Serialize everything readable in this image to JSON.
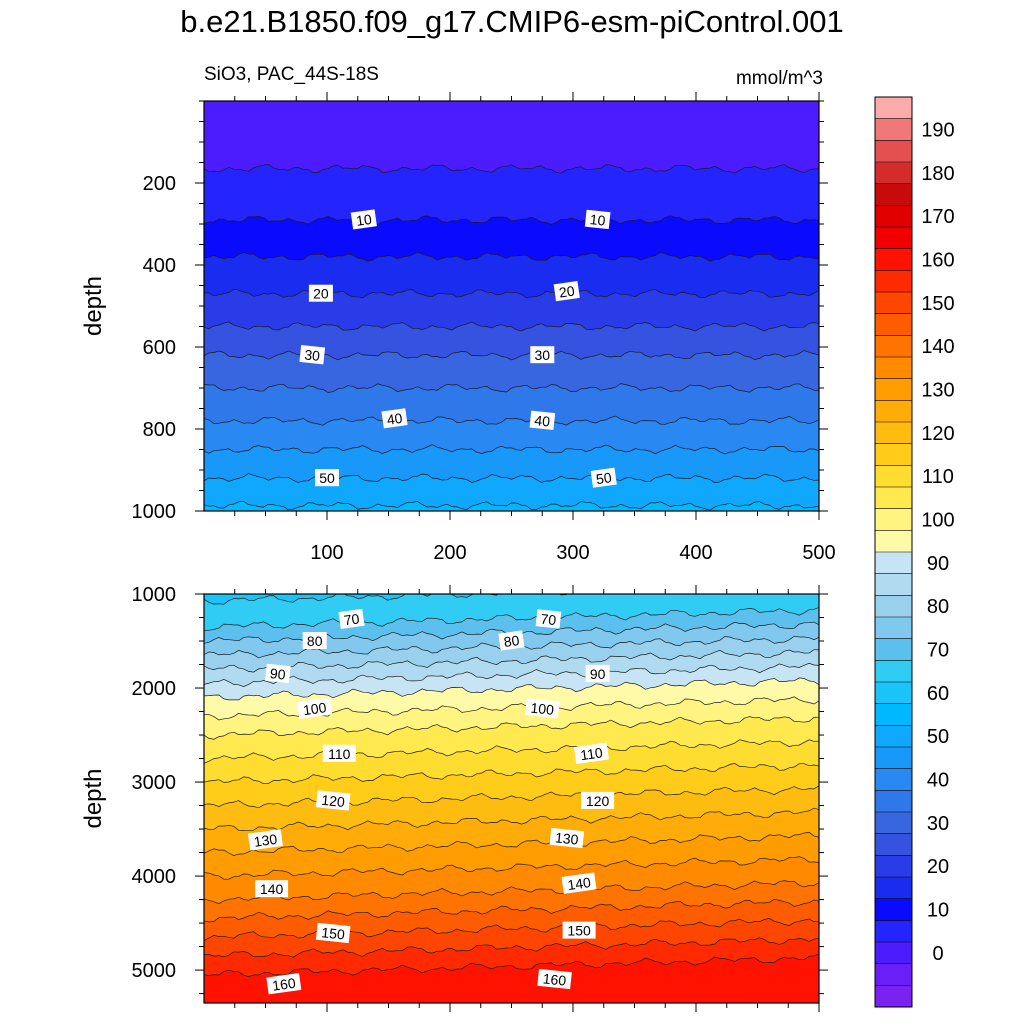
{
  "figure": {
    "title": "b.e21.B1850.f09_g17.CMIP6-esm-piControl.001",
    "left_subtitle": "SiO3, PAC_44S-18S",
    "right_subtitle": "mmol/m^3"
  },
  "colorbar": {
    "levels": [
      -10,
      -5,
      0,
      5,
      10,
      15,
      20,
      25,
      30,
      35,
      40,
      45,
      50,
      55,
      60,
      65,
      70,
      75,
      80,
      85,
      90,
      95,
      100,
      105,
      110,
      115,
      120,
      125,
      130,
      135,
      140,
      145,
      150,
      155,
      160,
      165,
      170,
      175,
      180,
      185,
      190,
      195,
      200
    ],
    "tick_labels": [
      "0",
      "10",
      "20",
      "30",
      "40",
      "50",
      "60",
      "70",
      "80",
      "90",
      "100",
      "110",
      "120",
      "130",
      "140",
      "150",
      "160",
      "170",
      "180",
      "190"
    ],
    "colors": [
      "#7a22f0",
      "#6a1ef8",
      "#4c1cff",
      "#2424ff",
      "#0a0aff",
      "#1a2cf0",
      "#2a3ce8",
      "#3552e0",
      "#3866e0",
      "#2e78ea",
      "#2a88f2",
      "#1898f8",
      "#10a8ff",
      "#00b8ff",
      "#1ac4f8",
      "#30ccf4",
      "#5cc0ee",
      "#80c8ee",
      "#98d0ee",
      "#b0daf0",
      "#c6e4f4",
      "#fffaa8",
      "#fff480",
      "#ffe94e",
      "#ffdc30",
      "#ffcc1a",
      "#ffbc10",
      "#ffab08",
      "#ff9c00",
      "#ff8a00",
      "#ff7400",
      "#ff5c00",
      "#ff4600",
      "#ff2a00",
      "#ff1200",
      "#f20000",
      "#e00000",
      "#c80a0a",
      "#d42c2c",
      "#e45050",
      "#f07878",
      "#fcaaaa"
    ]
  },
  "chart_data": [
    {
      "type": "heatmap",
      "subtitle": "SiO3, PAC_44S-18S",
      "units": "mmol/m^3",
      "xlabel": "",
      "ylabel": "depth",
      "xlim": [
        0,
        500
      ],
      "ylim": [
        1000,
        0
      ],
      "x_ticks": [
        100,
        200,
        300,
        400,
        500
      ],
      "y_ticks": [
        200,
        400,
        600,
        800,
        1000
      ],
      "contour_interval": 5,
      "depth_profile": {
        "depth": [
          0,
          165,
          290,
          380,
          470,
          550,
          620,
          700,
          780,
          850,
          920,
          1000
        ],
        "value": [
          2.5,
          5,
          10,
          15,
          20,
          25,
          30,
          35,
          40,
          45,
          50,
          56
        ]
      },
      "contour_labels": [
        {
          "text": "10",
          "x": 130,
          "depth": 290
        },
        {
          "text": "10",
          "x": 320,
          "depth": 290
        },
        {
          "text": "20",
          "x": 95,
          "depth": 470
        },
        {
          "text": "20",
          "x": 295,
          "depth": 465
        },
        {
          "text": "30",
          "x": 88,
          "depth": 620
        },
        {
          "text": "30",
          "x": 275,
          "depth": 620
        },
        {
          "text": "40",
          "x": 155,
          "depth": 775
        },
        {
          "text": "40",
          "x": 275,
          "depth": 780
        },
        {
          "text": "50",
          "x": 100,
          "depth": 920
        },
        {
          "text": "50",
          "x": 325,
          "depth": 920
        }
      ]
    },
    {
      "type": "heatmap",
      "xlabel": "",
      "ylabel": "depth",
      "xlim": [
        0,
        500
      ],
      "ylim": [
        5350,
        1000
      ],
      "y_ticks": [
        1000,
        2000,
        3000,
        4000,
        5000
      ],
      "contour_interval": 5,
      "depth_profile": {
        "depth": [
          1000,
          1150,
          1350,
          1500,
          1650,
          1800,
          1950,
          2100,
          2300,
          2500,
          2750,
          3000,
          3250,
          3500,
          3750,
          4000,
          4250,
          4450,
          4650,
          4850,
          5050,
          5350
        ],
        "value": [
          63,
          67,
          70,
          75,
          80,
          85,
          90,
          95,
          100,
          105,
          110,
          115,
          120,
          125,
          130,
          135,
          140,
          145,
          150,
          155,
          160,
          165
        ]
      },
      "east_west_tilt": [
        {
          "x": 0,
          "offset_m": 0
        },
        {
          "x": 500,
          "offset_m": -180
        }
      ],
      "contour_labels": [
        {
          "text": "70",
          "x": 120,
          "depth": 1270
        },
        {
          "text": "70",
          "x": 280,
          "depth": 1270
        },
        {
          "text": "80",
          "x": 90,
          "depth": 1500
        },
        {
          "text": "80",
          "x": 250,
          "depth": 1500
        },
        {
          "text": "90",
          "x": 60,
          "depth": 1850
        },
        {
          "text": "90",
          "x": 320,
          "depth": 1850
        },
        {
          "text": "100",
          "x": 90,
          "depth": 2220
        },
        {
          "text": "100",
          "x": 275,
          "depth": 2220
        },
        {
          "text": "110",
          "x": 110,
          "depth": 2700
        },
        {
          "text": "110",
          "x": 315,
          "depth": 2700
        },
        {
          "text": "120",
          "x": 105,
          "depth": 3200
        },
        {
          "text": "120",
          "x": 320,
          "depth": 3200
        },
        {
          "text": "130",
          "x": 50,
          "depth": 3620
        },
        {
          "text": "130",
          "x": 295,
          "depth": 3600
        },
        {
          "text": "140",
          "x": 55,
          "depth": 4140
        },
        {
          "text": "140",
          "x": 305,
          "depth": 4080
        },
        {
          "text": "150",
          "x": 105,
          "depth": 4610
        },
        {
          "text": "150",
          "x": 305,
          "depth": 4580
        },
        {
          "text": "160",
          "x": 65,
          "depth": 5150
        },
        {
          "text": "160",
          "x": 285,
          "depth": 5100
        }
      ]
    }
  ]
}
